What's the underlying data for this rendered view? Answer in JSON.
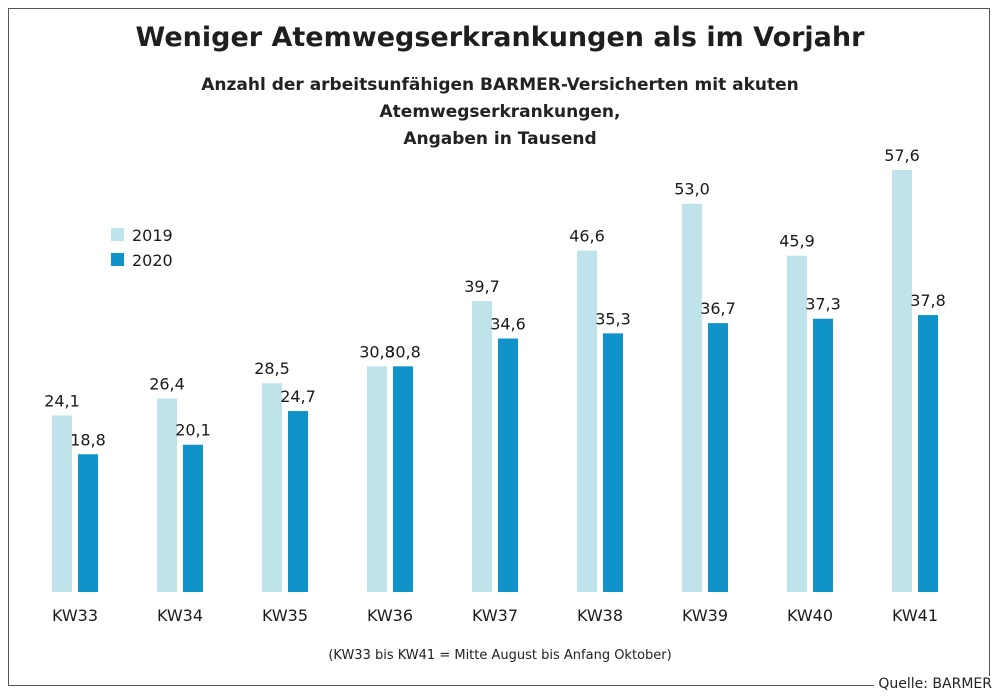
{
  "chart_data": {
    "type": "bar",
    "title": "Weniger Atemwegserkrankungen als im Vorjahr",
    "subtitle_line1": "Anzahl der arbeitsunfähigen BARMER-Versicherten mit akuten Atemwegserkrankungen,",
    "subtitle_line2": "Angaben in Tausend",
    "categories": [
      "KW33",
      "KW34",
      "KW35",
      "KW36",
      "KW37",
      "KW38",
      "KW39",
      "KW40",
      "KW41"
    ],
    "series": [
      {
        "name": "2019",
        "color": "#bfe3ea",
        "values": [
          24.1,
          26.4,
          28.5,
          30.8,
          39.7,
          46.6,
          53.0,
          45.9,
          57.6
        ],
        "labels": [
          "24,1",
          "26,4",
          "28,5",
          "30,8",
          "39,7",
          "46,6",
          "53,0",
          "45,9",
          "57,6"
        ]
      },
      {
        "name": "2020",
        "color": "#0f93c8",
        "values": [
          18.8,
          20.1,
          24.7,
          30.8,
          34.6,
          35.3,
          36.7,
          37.3,
          37.8
        ],
        "labels": [
          "18,8",
          "20,1",
          "24,7",
          "30,8",
          "34,6",
          "35,3",
          "36,7",
          "37,3",
          "37,8"
        ]
      }
    ],
    "ylim": [
      0,
      57.6
    ],
    "legend_position": "top-left",
    "grid": false,
    "footnote": "(KW33 bis KW41 = Mitte August bis Anfang Oktober)",
    "source": "Quelle: BARMER"
  }
}
